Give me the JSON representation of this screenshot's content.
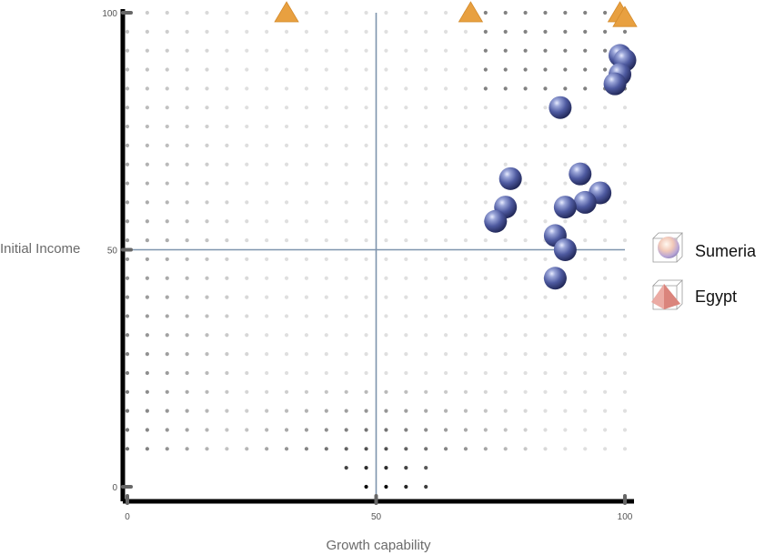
{
  "chart_data": {
    "type": "scatter",
    "xlabel": "Growth capability",
    "ylabel": "Initial Income",
    "xlim": [
      0,
      100
    ],
    "ylim": [
      0,
      100
    ],
    "x_ticks": [
      "0",
      "50",
      "100"
    ],
    "y_ticks": [
      "0",
      "50",
      "100"
    ],
    "reference_lines": {
      "x": 50,
      "y": 50,
      "color": "#7e94ad"
    },
    "grid": false,
    "legend_position": "right",
    "series": [
      {
        "name": "Sumeria",
        "marker": "sphere",
        "color": "#4e5fa8",
        "points": [
          [
            99,
            91
          ],
          [
            100,
            90
          ],
          [
            99,
            87
          ],
          [
            98,
            85
          ],
          [
            87,
            80
          ],
          [
            77,
            65
          ],
          [
            76,
            59
          ],
          [
            74,
            56
          ],
          [
            91,
            66
          ],
          [
            95,
            62
          ],
          [
            92,
            60
          ],
          [
            88,
            59
          ],
          [
            86,
            53
          ],
          [
            88,
            50
          ],
          [
            86,
            44
          ]
        ]
      },
      {
        "name": "Egypt",
        "marker": "triangle",
        "color": "#e8a040",
        "points": [
          [
            32,
            100
          ],
          [
            69,
            100
          ],
          [
            99,
            100
          ],
          [
            100,
            99
          ]
        ]
      }
    ],
    "background_density": {
      "marker": "small-dot",
      "x_step": 4,
      "y_step": 4
    }
  }
}
